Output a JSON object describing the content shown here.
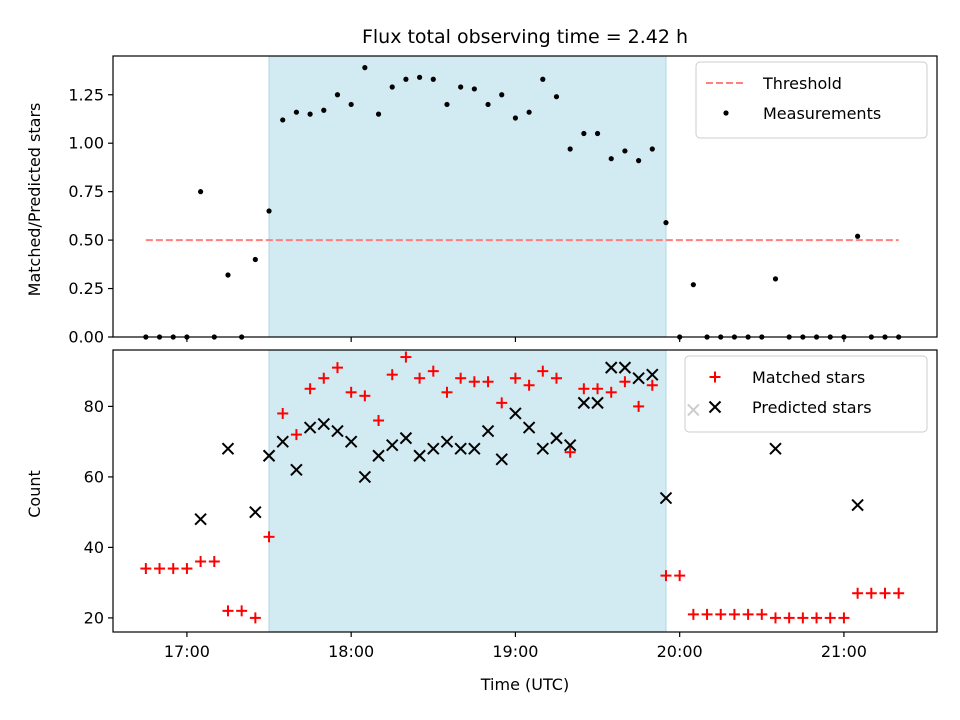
{
  "colors": {
    "shade": "#add8e6",
    "threshold": "#ff7f7f",
    "measurement": "#000000",
    "matched": "#ff0000",
    "predicted": "#000000"
  },
  "chart_data": [
    {
      "type": "scatter",
      "title": "Flux total observing time = 2.42 h",
      "ylabel": "Matched/Predicted stars",
      "xlabel": "",
      "x_unit": "time (UTC)",
      "xlim": [
        "16:33",
        "21:34"
      ],
      "ylim": [
        0,
        1.45
      ],
      "yticks": [
        0,
        0.25,
        0.5,
        0.75,
        1.0,
        1.25
      ],
      "ytick_labels": [
        "0.00",
        "0.25",
        "0.50",
        "0.75",
        "1.00",
        "1.25"
      ],
      "xtick_times": [
        "17:00",
        "18:00",
        "19:00",
        "20:00",
        "21:00"
      ],
      "xtick_labels": [
        "",
        "",
        "",
        "",
        ""
      ],
      "grid": false,
      "legend_position": "top-right",
      "shaded_region": {
        "x_start": "17:30",
        "x_end": "19:55"
      },
      "threshold": {
        "name": "Threshold",
        "y": 0.5,
        "x_start": "16:45",
        "x_end": "21:20"
      },
      "series": [
        {
          "name": "Measurements",
          "points": [
            [
              "16:45",
              0
            ],
            [
              "16:50",
              0
            ],
            [
              "16:55",
              0
            ],
            [
              "17:00",
              0
            ],
            [
              "17:05",
              0.75
            ],
            [
              "17:10",
              0
            ],
            [
              "17:15",
              0.32
            ],
            [
              "17:20",
              0
            ],
            [
              "17:25",
              0.4
            ],
            [
              "17:30",
              0.65
            ],
            [
              "17:35",
              1.12
            ],
            [
              "17:40",
              1.16
            ],
            [
              "17:45",
              1.15
            ],
            [
              "17:50",
              1.17
            ],
            [
              "17:55",
              1.25
            ],
            [
              "18:00",
              1.2
            ],
            [
              "18:05",
              1.39
            ],
            [
              "18:10",
              1.15
            ],
            [
              "18:15",
              1.29
            ],
            [
              "18:20",
              1.33
            ],
            [
              "18:25",
              1.34
            ],
            [
              "18:30",
              1.33
            ],
            [
              "18:35",
              1.2
            ],
            [
              "18:40",
              1.29
            ],
            [
              "18:45",
              1.28
            ],
            [
              "18:50",
              1.2
            ],
            [
              "18:55",
              1.25
            ],
            [
              "19:00",
              1.13
            ],
            [
              "19:05",
              1.16
            ],
            [
              "19:10",
              1.33
            ],
            [
              "19:15",
              1.24
            ],
            [
              "19:20",
              0.97
            ],
            [
              "19:25",
              1.05
            ],
            [
              "19:30",
              1.05
            ],
            [
              "19:35",
              0.92
            ],
            [
              "19:40",
              0.96
            ],
            [
              "19:45",
              0.91
            ],
            [
              "19:50",
              0.97
            ],
            [
              "19:55",
              0.59
            ],
            [
              "20:00",
              0
            ],
            [
              "20:05",
              0.27
            ],
            [
              "20:10",
              0
            ],
            [
              "20:15",
              0
            ],
            [
              "20:20",
              0
            ],
            [
              "20:25",
              0
            ],
            [
              "20:30",
              0
            ],
            [
              "20:35",
              0.3
            ],
            [
              "20:40",
              0
            ],
            [
              "20:45",
              0
            ],
            [
              "20:50",
              0
            ],
            [
              "20:55",
              0
            ],
            [
              "21:00",
              0
            ],
            [
              "21:05",
              0.52
            ],
            [
              "21:10",
              0
            ],
            [
              "21:15",
              0
            ],
            [
              "21:20",
              0
            ]
          ]
        }
      ]
    },
    {
      "type": "scatter",
      "title": "",
      "ylabel": "Count",
      "xlabel": "Time (UTC)",
      "x_unit": "time (UTC)",
      "xlim": [
        "16:33",
        "21:34"
      ],
      "ylim": [
        16,
        96
      ],
      "yticks": [
        20,
        40,
        60,
        80
      ],
      "ytick_labels": [
        "20",
        "40",
        "60",
        "80"
      ],
      "xtick_times": [
        "17:00",
        "18:00",
        "19:00",
        "20:00",
        "21:00"
      ],
      "xtick_labels": [
        "17:00",
        "18:00",
        "19:00",
        "20:00",
        "21:00"
      ],
      "grid": false,
      "legend_position": "top-right",
      "shaded_region": {
        "x_start": "17:30",
        "x_end": "19:55"
      },
      "series": [
        {
          "name": "Matched stars",
          "marker": "plus",
          "points": [
            [
              "16:45",
              34
            ],
            [
              "16:50",
              34
            ],
            [
              "16:55",
              34
            ],
            [
              "17:00",
              34
            ],
            [
              "17:05",
              36
            ],
            [
              "17:10",
              36
            ],
            [
              "17:15",
              22
            ],
            [
              "17:20",
              22
            ],
            [
              "17:25",
              20
            ],
            [
              "17:30",
              43
            ],
            [
              "17:35",
              78
            ],
            [
              "17:40",
              72
            ],
            [
              "17:45",
              85
            ],
            [
              "17:50",
              88
            ],
            [
              "17:55",
              91
            ],
            [
              "18:00",
              84
            ],
            [
              "18:05",
              83
            ],
            [
              "18:10",
              76
            ],
            [
              "18:15",
              89
            ],
            [
              "18:20",
              94
            ],
            [
              "18:25",
              88
            ],
            [
              "18:30",
              90
            ],
            [
              "18:35",
              84
            ],
            [
              "18:40",
              88
            ],
            [
              "18:45",
              87
            ],
            [
              "18:50",
              87
            ],
            [
              "18:55",
              81
            ],
            [
              "19:00",
              88
            ],
            [
              "19:05",
              86
            ],
            [
              "19:10",
              90
            ],
            [
              "19:15",
              88
            ],
            [
              "19:20",
              67
            ],
            [
              "19:25",
              85
            ],
            [
              "19:30",
              85
            ],
            [
              "19:35",
              84
            ],
            [
              "19:40",
              87
            ],
            [
              "19:45",
              80
            ],
            [
              "19:50",
              86
            ],
            [
              "19:55",
              32
            ],
            [
              "20:00",
              32
            ],
            [
              "20:05",
              21
            ],
            [
              "20:10",
              21
            ],
            [
              "20:15",
              21
            ],
            [
              "20:20",
              21
            ],
            [
              "20:25",
              21
            ],
            [
              "20:30",
              21
            ],
            [
              "20:35",
              20
            ],
            [
              "20:40",
              20
            ],
            [
              "20:45",
              20
            ],
            [
              "20:50",
              20
            ],
            [
              "20:55",
              20
            ],
            [
              "21:00",
              20
            ],
            [
              "21:05",
              27
            ],
            [
              "21:10",
              27
            ],
            [
              "21:15",
              27
            ],
            [
              "21:20",
              27
            ]
          ]
        },
        {
          "name": "Predicted stars",
          "marker": "x",
          "points": [
            [
              "17:05",
              48
            ],
            [
              "17:15",
              68
            ],
            [
              "17:25",
              50
            ],
            [
              "17:30",
              66
            ],
            [
              "17:35",
              70
            ],
            [
              "17:40",
              62
            ],
            [
              "17:45",
              74
            ],
            [
              "17:50",
              75
            ],
            [
              "17:55",
              73
            ],
            [
              "18:00",
              70
            ],
            [
              "18:05",
              60
            ],
            [
              "18:10",
              66
            ],
            [
              "18:15",
              69
            ],
            [
              "18:20",
              71
            ],
            [
              "18:25",
              66
            ],
            [
              "18:30",
              68
            ],
            [
              "18:35",
              70
            ],
            [
              "18:40",
              68
            ],
            [
              "18:45",
              68
            ],
            [
              "18:50",
              73
            ],
            [
              "18:55",
              65
            ],
            [
              "19:00",
              78
            ],
            [
              "19:05",
              74
            ],
            [
              "19:10",
              68
            ],
            [
              "19:15",
              71
            ],
            [
              "19:20",
              69
            ],
            [
              "19:25",
              81
            ],
            [
              "19:30",
              81
            ],
            [
              "19:35",
              91
            ],
            [
              "19:40",
              91
            ],
            [
              "19:45",
              88
            ],
            [
              "19:50",
              89
            ],
            [
              "19:55",
              54
            ],
            [
              "20:05",
              79
            ],
            [
              "20:35",
              68
            ],
            [
              "21:05",
              52
            ]
          ]
        }
      ]
    }
  ]
}
